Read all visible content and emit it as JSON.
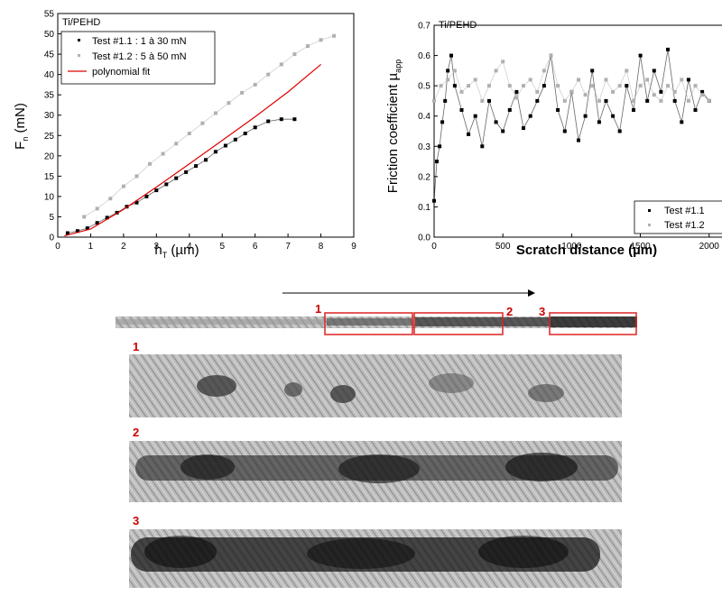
{
  "chart_data": [
    {
      "type": "scatter",
      "panel_label": "Ti/PEHD",
      "xlabel_main": "h",
      "xlabel_sub": "T",
      "xlabel_unit": " (µm)",
      "ylabel_main": "F",
      "ylabel_sub": "n",
      "ylabel_unit": " (mN)",
      "xlim": [
        0,
        9
      ],
      "ylim": [
        0,
        55
      ],
      "x_ticks": [
        "0",
        "1",
        "2",
        "3",
        "4",
        "5",
        "6",
        "7",
        "8",
        "9"
      ],
      "y_ticks": [
        "0",
        "5",
        "10",
        "15",
        "20",
        "25",
        "30",
        "35",
        "40",
        "45",
        "50",
        "55"
      ],
      "legend": {
        "position": "top-left",
        "entries": [
          "Test #1.1 : 1 à 30 mN",
          "Test #1.2 : 5 à 50 mN",
          "polynomial fit"
        ]
      },
      "series": [
        {
          "name": "Test #1.1 : 1 à 30 mN",
          "color": "#000000",
          "x": [
            0.3,
            0.6,
            0.9,
            1.2,
            1.5,
            1.8,
            2.1,
            2.4,
            2.7,
            3.0,
            3.3,
            3.6,
            3.9,
            4.2,
            4.5,
            4.8,
            5.1,
            5.4,
            5.7,
            6.0,
            6.4,
            6.8,
            7.2
          ],
          "y": [
            1,
            1.5,
            2.2,
            3.5,
            4.8,
            6,
            7.5,
            8.5,
            10,
            11.5,
            13,
            14.5,
            16,
            17.5,
            19,
            21,
            22.5,
            24,
            25.5,
            27,
            28.5,
            29,
            29
          ]
        },
        {
          "name": "Test #1.2 : 5 à 50 mN",
          "color": "#b0b0b0",
          "x": [
            0.8,
            1.2,
            1.6,
            2.0,
            2.4,
            2.8,
            3.2,
            3.6,
            4.0,
            4.4,
            4.8,
            5.2,
            5.6,
            6.0,
            6.4,
            6.8,
            7.2,
            7.6,
            8.0,
            8.4
          ],
          "y": [
            5,
            7,
            9.5,
            12.5,
            15,
            18,
            20.5,
            23,
            25.5,
            28,
            30.5,
            33,
            35.5,
            37.5,
            40,
            42.5,
            45,
            47,
            48.5,
            49.5
          ]
        },
        {
          "name": "polynomial fit",
          "color": "#dd0000",
          "x": [
            0.2,
            1,
            2,
            3,
            4,
            5,
            6,
            7,
            8
          ],
          "y": [
            0.3,
            2,
            6.8,
            12.3,
            18,
            23.8,
            29.6,
            35.7,
            42.5
          ]
        }
      ]
    },
    {
      "type": "scatter",
      "panel_label": "Ti/PEHD",
      "xlabel": "Scratch distance (µm)",
      "ylabel_main": "Friction coefficient µ",
      "ylabel_sub": "app",
      "xlim": [
        0,
        2100
      ],
      "ylim": [
        0,
        0.7
      ],
      "x_ticks": [
        "0",
        "500",
        "1000",
        "1500",
        "2000"
      ],
      "y_ticks": [
        "0.0",
        "0.1",
        "0.2",
        "0.3",
        "0.4",
        "0.5",
        "0.6",
        "0.7"
      ],
      "legend": {
        "position": "bottom-right",
        "entries": [
          "Test #1.1",
          "Test #1.2"
        ]
      },
      "series": [
        {
          "name": "Test #1.1",
          "color": "#000000",
          "x": [
            0,
            20,
            40,
            60,
            80,
            100,
            125,
            150,
            200,
            250,
            300,
            350,
            400,
            450,
            500,
            550,
            600,
            650,
            700,
            750,
            800,
            850,
            900,
            950,
            1000,
            1050,
            1100,
            1150,
            1200,
            1250,
            1300,
            1350,
            1400,
            1450,
            1500,
            1550,
            1600,
            1650,
            1700,
            1750,
            1800,
            1850,
            1900,
            1950,
            2000
          ],
          "y": [
            0.12,
            0.25,
            0.3,
            0.38,
            0.45,
            0.55,
            0.6,
            0.5,
            0.42,
            0.34,
            0.4,
            0.3,
            0.45,
            0.38,
            0.35,
            0.42,
            0.48,
            0.36,
            0.4,
            0.45,
            0.5,
            0.6,
            0.42,
            0.35,
            0.48,
            0.32,
            0.4,
            0.55,
            0.38,
            0.45,
            0.4,
            0.35,
            0.5,
            0.42,
            0.6,
            0.45,
            0.55,
            0.48,
            0.62,
            0.45,
            0.38,
            0.52,
            0.42,
            0.48,
            0.45
          ]
        },
        {
          "name": "Test #1.2",
          "color": "#b0b0b0",
          "x": [
            0,
            50,
            100,
            150,
            200,
            250,
            300,
            350,
            400,
            450,
            500,
            550,
            600,
            650,
            700,
            750,
            800,
            850,
            900,
            950,
            1000,
            1050,
            1100,
            1150,
            1200,
            1250,
            1300,
            1350,
            1400,
            1450,
            1500,
            1550,
            1600,
            1650,
            1700,
            1750,
            1800,
            1850,
            1900,
            1950,
            2000
          ],
          "y": [
            0.45,
            0.5,
            0.52,
            0.55,
            0.48,
            0.5,
            0.52,
            0.45,
            0.5,
            0.55,
            0.58,
            0.5,
            0.46,
            0.5,
            0.52,
            0.48,
            0.55,
            0.6,
            0.5,
            0.45,
            0.48,
            0.52,
            0.47,
            0.5,
            0.45,
            0.52,
            0.48,
            0.5,
            0.55,
            0.45,
            0.5,
            0.52,
            0.47,
            0.45,
            0.5,
            0.48,
            0.52,
            0.45,
            0.5,
            0.47,
            0.45
          ]
        }
      ]
    }
  ],
  "scratch_figure": {
    "region_labels": [
      "1",
      "2",
      "3"
    ],
    "zoom_labels": [
      "1",
      "2",
      "3"
    ]
  }
}
